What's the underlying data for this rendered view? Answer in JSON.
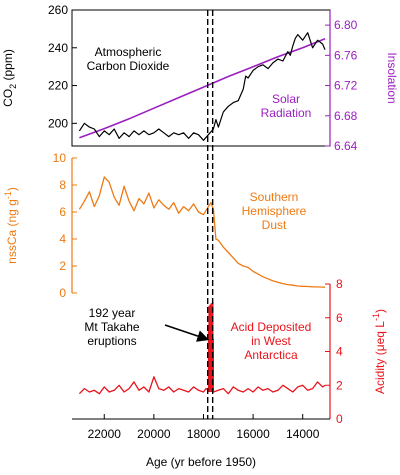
{
  "chart_data": [
    {
      "type": "line",
      "panel": "co2-insolation",
      "x_label": "Age (yr before 1950)",
      "x_lim": [
        23300,
        12900
      ],
      "x_reversed": true,
      "x_ticks": [
        22000,
        20000,
        18000,
        16000,
        14000
      ],
      "left_axis": {
        "label_main": "CO",
        "label_sub": "2",
        "label_unit": " (ppm)",
        "ylim": [
          188,
          260
        ],
        "ticks": [
          200,
          220,
          240,
          260
        ],
        "color": "#000000"
      },
      "right_axis": {
        "label": "Insolation",
        "ylim": [
          6.64,
          6.82
        ],
        "ticks": [
          6.64,
          6.68,
          6.72,
          6.76,
          6.8
        ],
        "color": "#9b1fbf"
      },
      "annotations": [
        {
          "lines": [
            "Atmospheric",
            "Carbon Dioxide"
          ],
          "color": "#000000"
        },
        {
          "lines": [
            "Solar",
            "Radiation"
          ],
          "color": "#9b1fbf"
        }
      ],
      "series": [
        {
          "axis": "left",
          "color": "#000000",
          "x": [
            23000,
            22800,
            22600,
            22400,
            22200,
            22000,
            21800,
            21600,
            21400,
            21200,
            21000,
            20800,
            20600,
            20400,
            20200,
            20000,
            19800,
            19600,
            19400,
            19200,
            19000,
            18800,
            18600,
            18400,
            18200,
            18000,
            17800,
            17600,
            17500,
            17400,
            17200,
            17000,
            16800,
            16600,
            16400,
            16300,
            16200,
            16000,
            15800,
            15600,
            15400,
            15200,
            15000,
            14800,
            14600,
            14500,
            14400,
            14300,
            14200,
            14000,
            13800,
            13600,
            13400,
            13200,
            13100
          ],
          "values": [
            196,
            200,
            198,
            197,
            193,
            196,
            194,
            197,
            192,
            195,
            193,
            196,
            194,
            196,
            194,
            195,
            197,
            195,
            193,
            195,
            194,
            195,
            192,
            195,
            194,
            191,
            194,
            197,
            202,
            198,
            206,
            209,
            211,
            212,
            218,
            225,
            224,
            228,
            230,
            231,
            229,
            232,
            234,
            233,
            238,
            236,
            241,
            245,
            247,
            244,
            248,
            240,
            244,
            242,
            239
          ]
        },
        {
          "axis": "right",
          "color": "#9b1fbf",
          "x": [
            23000,
            22000,
            21000,
            20000,
            19000,
            18000,
            17000,
            16000,
            15000,
            14000,
            13100
          ],
          "values": [
            6.651,
            6.663,
            6.676,
            6.69,
            6.704,
            6.718,
            6.732,
            6.745,
            6.758,
            6.77,
            6.782
          ]
        }
      ]
    },
    {
      "type": "line",
      "panel": "dust",
      "x_lim": [
        23300,
        12900
      ],
      "left_axis": {
        "label_main": "nssCa (ng g",
        "label_sup": "-1",
        "label_unit": ")",
        "ylim": [
          0,
          10
        ],
        "ticks": [
          0,
          2,
          4,
          6,
          8,
          10
        ],
        "color": "#ee7a12"
      },
      "annotations": [
        {
          "lines": [
            "Southern",
            "Hemisphere",
            "Dust"
          ],
          "color": "#ee7a12"
        }
      ],
      "series": [
        {
          "color": "#ee7a12",
          "x": [
            23000,
            22800,
            22600,
            22400,
            22200,
            22000,
            21800,
            21600,
            21400,
            21200,
            21000,
            20800,
            20600,
            20400,
            20200,
            20000,
            19800,
            19600,
            19400,
            19200,
            19000,
            18800,
            18600,
            18400,
            18200,
            18000,
            17800,
            17700,
            17600,
            17500,
            17400,
            17200,
            17000,
            16800,
            16600,
            16400,
            16200,
            16000,
            15800,
            15600,
            15400,
            15200,
            15000,
            14800,
            14600,
            14400,
            14200,
            14000,
            13800,
            13600,
            13400,
            13200,
            13100
          ],
          "values": [
            6.2,
            6.8,
            7.5,
            6.4,
            7.2,
            8.6,
            8.2,
            7.1,
            6.5,
            7.9,
            6.8,
            6.1,
            7.0,
            6.6,
            7.4,
            6.3,
            6.9,
            6.5,
            6.2,
            6.7,
            5.9,
            6.4,
            6.1,
            6.6,
            6.0,
            5.8,
            6.4,
            6.7,
            6.2,
            4.0,
            3.9,
            3.4,
            3.0,
            2.6,
            2.2,
            2.0,
            1.9,
            1.6,
            1.4,
            1.2,
            1.05,
            0.9,
            0.8,
            0.7,
            0.62,
            0.58,
            0.52,
            0.5,
            0.48,
            0.46,
            0.45,
            0.44,
            0.43
          ]
        }
      ]
    },
    {
      "type": "line",
      "panel": "acidity",
      "x_lim": [
        23300,
        12900
      ],
      "right_axis": {
        "label_main": "Acidity (μeq L",
        "label_sup": "-1",
        "label_unit": ")",
        "ylim": [
          0,
          8
        ],
        "ticks": [
          0,
          2,
          4,
          6,
          8
        ],
        "color": "#e8141c"
      },
      "annotations": [
        {
          "lines": [
            "192 year",
            "Mt Takahe",
            "eruptions"
          ],
          "color": "#000000"
        },
        {
          "lines": [
            "Acid Deposited",
            "in West",
            "Antarctica"
          ],
          "color": "#e8141c"
        }
      ],
      "eruption_window": [
        17800,
        17600
      ],
      "eruption_peak": 7.0,
      "series": [
        {
          "color": "#e8141c",
          "x": [
            23000,
            22800,
            22600,
            22400,
            22200,
            22000,
            21800,
            21600,
            21400,
            21200,
            21000,
            20800,
            20600,
            20400,
            20200,
            20000,
            19800,
            19600,
            19400,
            19200,
            19000,
            18800,
            18600,
            18400,
            18200,
            18000,
            17900,
            17600,
            17400,
            17200,
            17000,
            16800,
            16600,
            16400,
            16200,
            16000,
            15800,
            15600,
            15400,
            15200,
            15000,
            14800,
            14600,
            14400,
            14200,
            14000,
            13800,
            13600,
            13400,
            13200,
            13100
          ],
          "values": [
            1.5,
            1.8,
            1.6,
            1.7,
            1.5,
            1.9,
            1.6,
            1.7,
            2.0,
            1.6,
            1.8,
            2.2,
            1.7,
            1.9,
            1.6,
            2.5,
            1.8,
            1.7,
            1.9,
            1.6,
            1.8,
            1.7,
            1.6,
            1.9,
            1.7,
            1.6,
            1.8,
            1.6,
            1.7,
            1.8,
            1.5,
            1.9,
            1.7,
            1.6,
            1.8,
            1.6,
            1.9,
            1.7,
            1.8,
            1.6,
            1.7,
            2.0,
            1.8,
            1.6,
            1.9,
            2.0,
            1.7,
            1.8,
            2.2,
            1.9,
            2.0
          ]
        }
      ]
    }
  ]
}
